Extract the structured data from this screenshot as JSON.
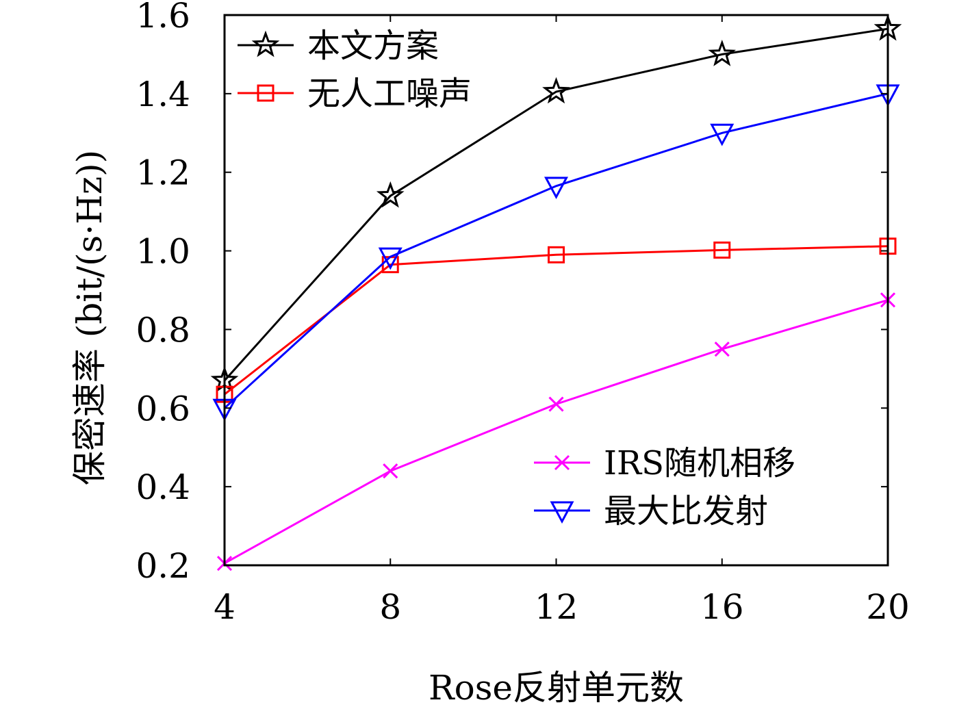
{
  "chart_data": {
    "type": "line",
    "xlabel": "Rose反射单元数",
    "ylabel": "保密速率 (bit/(s·Hz))",
    "x": [
      4,
      8,
      12,
      16,
      20
    ],
    "xticks": [
      "4",
      "8",
      "12",
      "16",
      "20"
    ],
    "yticks": [
      "0.2",
      "0.4",
      "0.6",
      "0.8",
      "1.0",
      "1.2",
      "1.4",
      "1.6"
    ],
    "xlim": [
      4,
      20
    ],
    "ylim": [
      0.2,
      1.6
    ],
    "grid": false,
    "legend_placement": [
      "top-left",
      "bottom-right"
    ],
    "series": [
      {
        "name": "本文方案",
        "marker": "star",
        "color": "#000000",
        "values": [
          0.67,
          1.14,
          1.405,
          1.5,
          1.565
        ]
      },
      {
        "name": "无人工噪声",
        "marker": "square",
        "color": "#ff0000",
        "values": [
          0.635,
          0.965,
          0.99,
          1.002,
          1.012
        ]
      },
      {
        "name": "IRS随机相移",
        "marker": "x",
        "color": "#ff00ff",
        "values": [
          0.205,
          0.44,
          0.61,
          0.75,
          0.875
        ]
      },
      {
        "name": "最大比发射",
        "marker": "triangle-down",
        "color": "#0000ff",
        "values": [
          0.6,
          0.985,
          1.165,
          1.3,
          1.4
        ]
      }
    ]
  }
}
